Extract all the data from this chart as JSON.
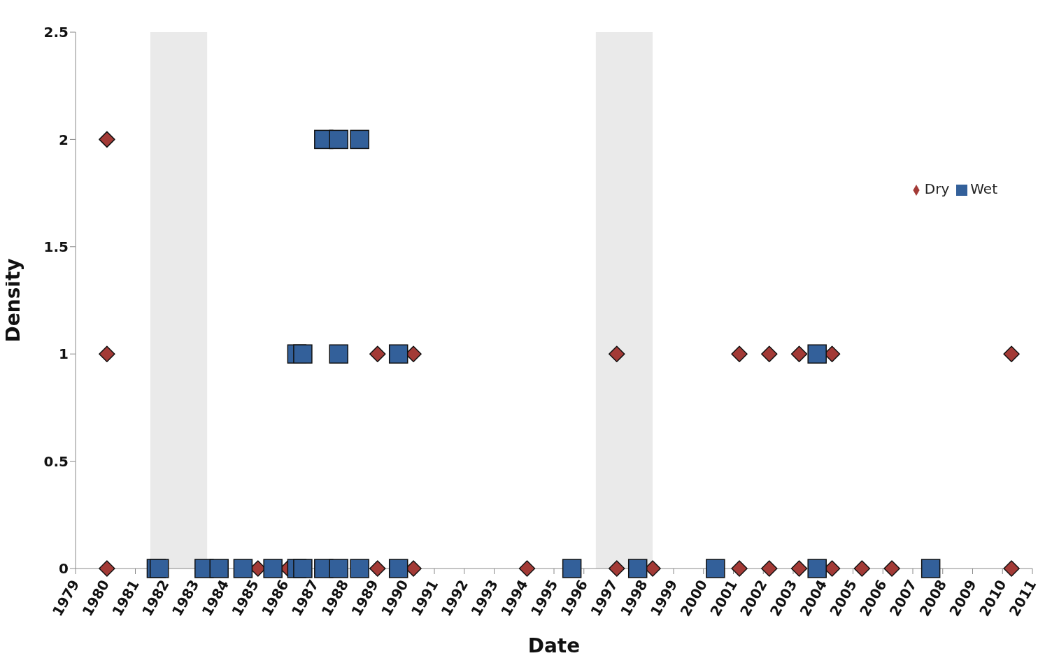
{
  "chart_data": {
    "type": "scatter",
    "xlabel": "Date",
    "ylabel": "Density",
    "xlim": [
      1979,
      2011
    ],
    "xticks": [
      1979,
      1980,
      1981,
      1982,
      1983,
      1984,
      1985,
      1986,
      1987,
      1988,
      1989,
      1990,
      1991,
      1992,
      1993,
      1994,
      1995,
      1996,
      1997,
      1998,
      1999,
      2000,
      2001,
      2002,
      2003,
      2004,
      2005,
      2006,
      2007,
      2008,
      2009,
      2010,
      2011
    ],
    "ylim": [
      0,
      2.5
    ],
    "yticks": [
      0,
      0.5,
      1,
      1.5,
      2,
      2.5
    ],
    "grid": false,
    "legend": "top right",
    "bands": [
      {
        "axis": "x",
        "from": 1981.5,
        "to": 1983.4,
        "color": "#e6e6e6"
      },
      {
        "axis": "x",
        "from": 1996.4,
        "to": 1998.3,
        "color": "#e6e6e6"
      }
    ],
    "series": [
      {
        "name": "Dry",
        "color": "#a33a36",
        "marker": "diamond",
        "x": [
          1980.05,
          1980.05,
          1989.1,
          1990.3,
          1997.1,
          2001.2,
          2002.2,
          2003.2,
          2004.3,
          2010.3,
          1980.05,
          1985.1,
          1986.1,
          1989.1,
          1990.3,
          1994.1,
          1997.1,
          1998.3,
          2001.2,
          2002.2,
          2003.2,
          2004.3,
          2005.3,
          2006.3,
          2010.3
        ],
        "values": [
          2,
          1,
          1,
          1,
          1,
          1,
          1,
          1,
          1,
          1,
          0,
          0,
          0,
          0,
          0,
          0,
          0,
          0,
          0,
          0,
          0,
          0,
          0,
          0,
          0
        ]
      },
      {
        "name": "Wet",
        "color": "#33609a",
        "marker": "square",
        "x": [
          1987.3,
          1987.8,
          1988.5,
          1986.4,
          1986.6,
          1987.8,
          1989.8,
          2003.8,
          1981.7,
          1981.8,
          1983.3,
          1983.8,
          1984.6,
          1985.6,
          1986.4,
          1986.6,
          1987.3,
          1987.8,
          1988.5,
          1989.8,
          1995.6,
          1997.8,
          2000.4,
          2003.8,
          2007.6
        ],
        "values": [
          2,
          2,
          2,
          1,
          1,
          1,
          1,
          1,
          0,
          0,
          0,
          0,
          0,
          0,
          0,
          0,
          0,
          0,
          0,
          0,
          0,
          0,
          0,
          0,
          0
        ]
      }
    ]
  }
}
